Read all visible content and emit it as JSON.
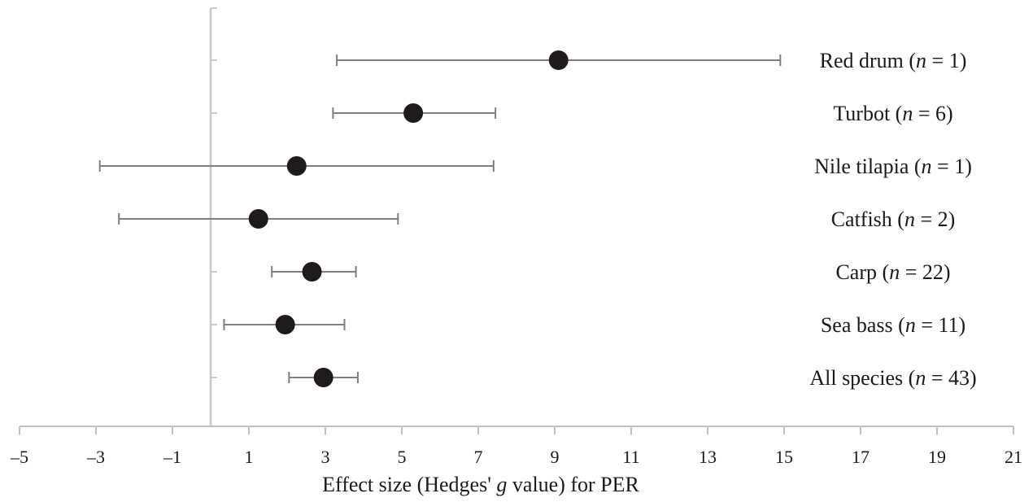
{
  "chart_data": {
    "type": "scatter",
    "subtype": "forest-plot",
    "title": "",
    "xlabel": {
      "prefix": "Effect size (Hedges' ",
      "italic": "g",
      "suffix": " value) for PER"
    },
    "ylabel": "",
    "xlim": [
      -5,
      21
    ],
    "xticks": [
      -5,
      -3,
      -1,
      1,
      3,
      5,
      7,
      9,
      11,
      13,
      15,
      17,
      19,
      21
    ],
    "xtick_labels": [
      "–5",
      "–3",
      "–1",
      "1",
      "3",
      "5",
      "7",
      "9",
      "11",
      "13",
      "15",
      "17",
      "19",
      "21"
    ],
    "reference_line": 0,
    "grid": false,
    "legend": "none",
    "colors": {
      "marker": "#1f1a1c",
      "whisker": "#7f7f7f",
      "axis": "#bfbfbf",
      "reference": "#c8c8c8"
    },
    "rows": [
      {
        "species": "Red drum",
        "n_label": "n",
        "n_text": " = 1)",
        "effect": 9.1,
        "ci_low": 3.3,
        "ci_high": 14.9
      },
      {
        "species": "Turbot",
        "n_label": "n",
        "n_text": " = 6)",
        "effect": 5.3,
        "ci_low": 3.2,
        "ci_high": 7.45
      },
      {
        "species": "Nile tilapia",
        "n_label": "n",
        "n_text": " = 1)",
        "effect": 2.25,
        "ci_low": -2.9,
        "ci_high": 7.4
      },
      {
        "species": "Catfish",
        "n_label": "n",
        "n_text": " = 2)",
        "effect": 1.25,
        "ci_low": -2.4,
        "ci_high": 4.9
      },
      {
        "species": "Carp",
        "n_label": "n",
        "n_text": " = 22)",
        "effect": 2.65,
        "ci_low": 1.6,
        "ci_high": 3.8
      },
      {
        "species": "Sea bass",
        "n_label": "n",
        "n_text": " = 11)",
        "effect": 1.95,
        "ci_low": 0.35,
        "ci_high": 3.5
      },
      {
        "species": "All species",
        "n_label": "n",
        "n_text": " = 43)",
        "effect": 2.95,
        "ci_low": 2.05,
        "ci_high": 3.85
      }
    ]
  }
}
